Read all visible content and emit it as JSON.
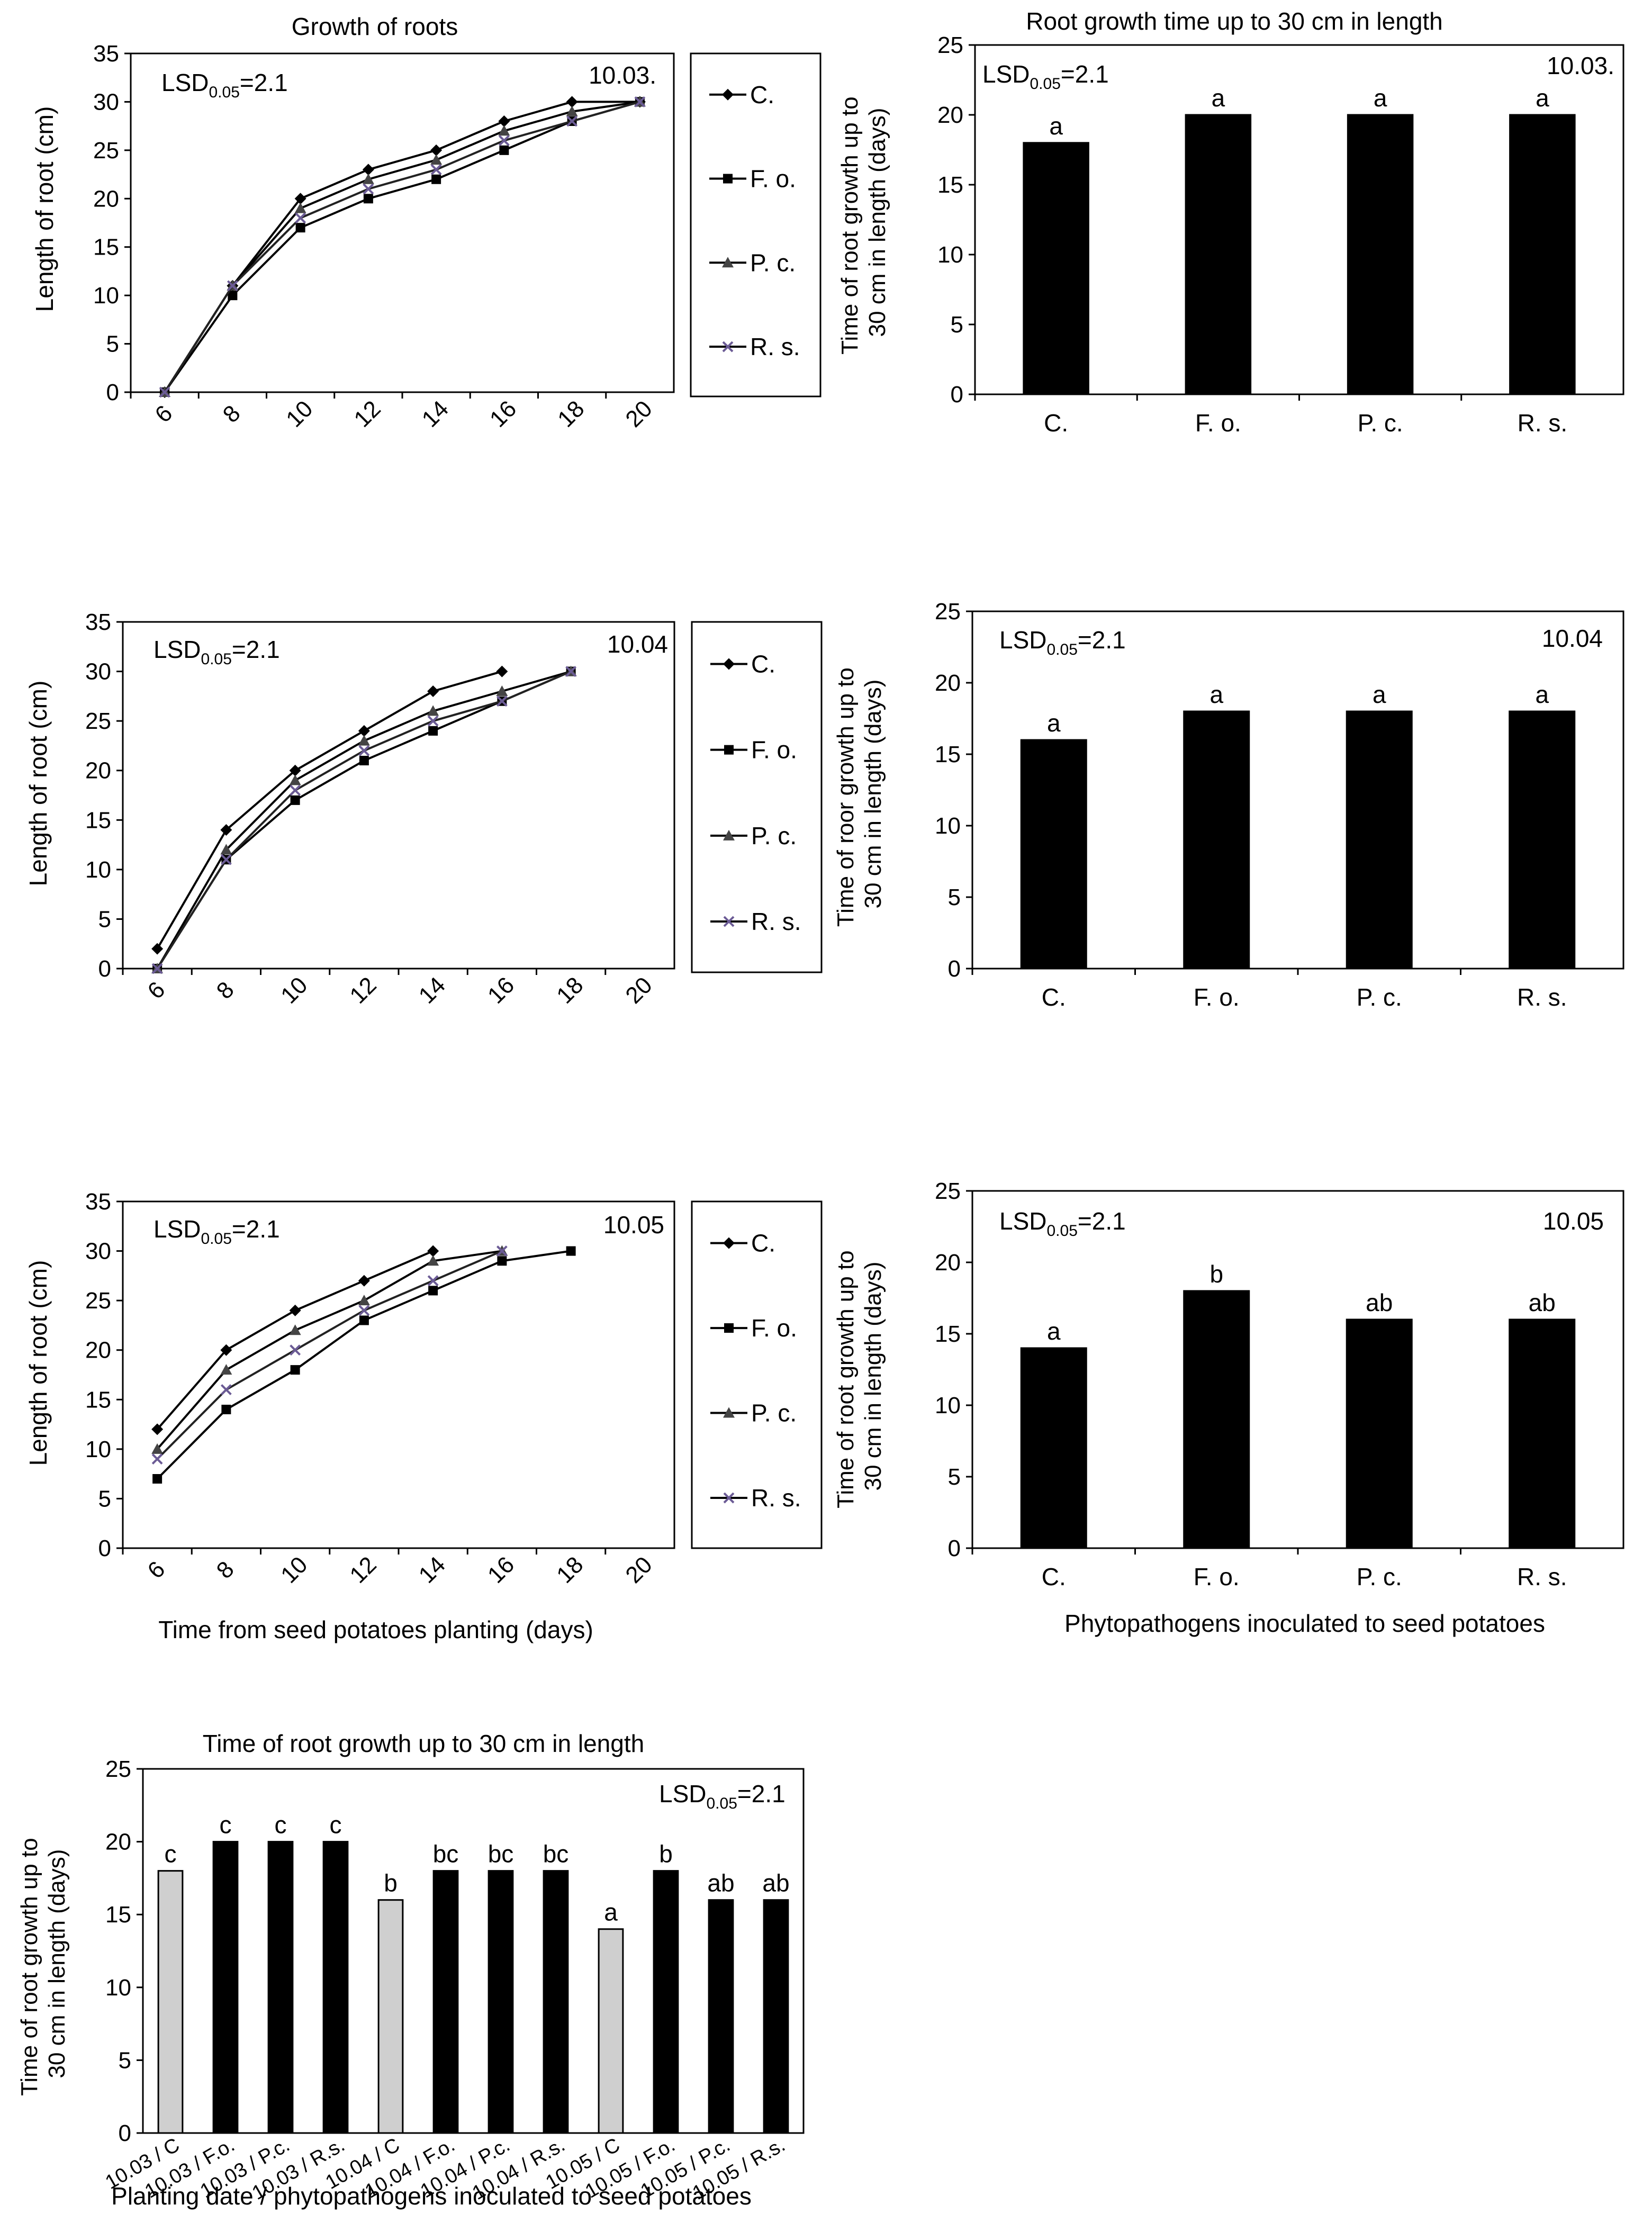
{
  "figure": {
    "top_title": "Growth of roots",
    "top_bar_title": "Root growth time up to 30 cm in length",
    "xlabel_line": "Time from seed potatoes planting  (days)",
    "xlabel_bar": "Phytopathogens  inoculated  to seed potatoes",
    "lsd": {
      "prefix": "LSD",
      "sub": "0.05",
      "suffix": "=2.1"
    },
    "colors": {
      "series": "#000000",
      "cross": "#6b5b95",
      "bar": "#000000",
      "control_bar": "#cfcfcf"
    }
  },
  "chart_data": [
    {
      "id": "line-1003",
      "type": "line",
      "title": "Growth of roots",
      "annotation": "10.03.",
      "xlabel": "",
      "ylabel": "Length of root (cm)",
      "categories": [
        6,
        8,
        10,
        12,
        14,
        16,
        18,
        20
      ],
      "ylim": [
        0,
        35
      ],
      "yticks": [
        0,
        5,
        10,
        15,
        20,
        25,
        30,
        35
      ],
      "legend_position": "right",
      "series": [
        {
          "name": "C.",
          "marker": "diamond",
          "values": [
            0,
            11,
            20,
            23,
            25,
            28,
            30,
            30
          ]
        },
        {
          "name": "F. o.",
          "marker": "square",
          "values": [
            0,
            10,
            17,
            20,
            22,
            25,
            28,
            30
          ]
        },
        {
          "name": "P. c.",
          "marker": "triangle",
          "values": [
            0,
            11,
            19,
            22,
            24,
            27,
            29,
            30
          ]
        },
        {
          "name": "R. s.",
          "marker": "cross",
          "values": [
            0,
            11,
            18,
            21,
            23,
            26,
            28,
            30
          ]
        }
      ]
    },
    {
      "id": "bar-1003",
      "type": "bar",
      "title": "Root growth time up to 30 cm in length",
      "annotation": "10.03.",
      "ylabel": [
        "Time of root growth up to",
        "30 cm in length (days)"
      ],
      "categories": [
        "C.",
        "F. o.",
        "P. c.",
        "R. s."
      ],
      "values": [
        18,
        20,
        20,
        20
      ],
      "labels": [
        "a",
        "a",
        "a",
        "a"
      ],
      "ylim": [
        0,
        25
      ],
      "yticks": [
        0,
        5,
        10,
        15,
        20,
        25
      ]
    },
    {
      "id": "line-1004",
      "type": "line",
      "title": "",
      "annotation": "10.04",
      "xlabel": "",
      "ylabel": "Length of root (cm)",
      "categories": [
        6,
        8,
        10,
        12,
        14,
        16,
        18,
        20
      ],
      "ylim": [
        0,
        35
      ],
      "yticks": [
        0,
        5,
        10,
        15,
        20,
        25,
        30,
        35
      ],
      "legend_position": "right",
      "series": [
        {
          "name": "C.",
          "marker": "diamond",
          "values": [
            2,
            14,
            20,
            24,
            28,
            30,
            null,
            null
          ]
        },
        {
          "name": "F. o.",
          "marker": "square",
          "values": [
            0,
            11,
            17,
            21,
            24,
            27,
            30,
            null
          ]
        },
        {
          "name": "P. c.",
          "marker": "triangle",
          "values": [
            0,
            12,
            19,
            23,
            26,
            28,
            30,
            null
          ]
        },
        {
          "name": "R. s.",
          "marker": "cross",
          "values": [
            0,
            11,
            18,
            22,
            25,
            27,
            30,
            null
          ]
        }
      ]
    },
    {
      "id": "bar-1004",
      "type": "bar",
      "title": "",
      "annotation": "10.04",
      "ylabel": [
        "Time of roor growth up to",
        "30 cm in length (days)"
      ],
      "categories": [
        "C.",
        "F. o.",
        "P. c.",
        "R. s."
      ],
      "values": [
        16,
        18,
        18,
        18
      ],
      "labels": [
        "a",
        "a",
        "a",
        "a"
      ],
      "ylim": [
        0,
        25
      ],
      "yticks": [
        0,
        5,
        10,
        15,
        20,
        25
      ]
    },
    {
      "id": "line-1005",
      "type": "line",
      "title": "",
      "annotation": "10.05",
      "xlabel": "Time from seed potatoes planting  (days)",
      "ylabel": "Length of root (cm)",
      "categories": [
        6,
        8,
        10,
        12,
        14,
        16,
        18,
        20
      ],
      "ylim": [
        0,
        35
      ],
      "yticks": [
        0,
        5,
        10,
        15,
        20,
        25,
        30,
        35
      ],
      "legend_position": "right",
      "series": [
        {
          "name": "C.",
          "marker": "diamond",
          "values": [
            12,
            20,
            24,
            27,
            30,
            null,
            null,
            null
          ]
        },
        {
          "name": "F. o.",
          "marker": "square",
          "values": [
            7,
            14,
            18,
            23,
            26,
            29,
            30,
            null
          ]
        },
        {
          "name": "P. c.",
          "marker": "triangle",
          "values": [
            10,
            18,
            22,
            25,
            29,
            30,
            null,
            null
          ]
        },
        {
          "name": "R. s.",
          "marker": "cross",
          "values": [
            9,
            16,
            20,
            24,
            27,
            30,
            null,
            null
          ]
        }
      ]
    },
    {
      "id": "bar-1005",
      "type": "bar",
      "title": "",
      "annotation": "10.05",
      "ylabel": [
        "Time of root growth up to",
        "30 cm in length  (days)"
      ],
      "xlabel": "Phytopathogens  inoculated  to seed potatoes",
      "categories": [
        "C.",
        "F. o.",
        "P. c.",
        "R. s."
      ],
      "values": [
        14,
        18,
        16,
        16
      ],
      "labels": [
        "a",
        "b",
        "ab",
        "ab"
      ],
      "ylim": [
        0,
        25
      ],
      "yticks": [
        0,
        5,
        10,
        15,
        20,
        25
      ]
    },
    {
      "id": "bar-all",
      "type": "bar",
      "title": "Time of root growth up to 30 cm in length",
      "ylabel": [
        "Time of root growth up to",
        "30 cm in length (days)"
      ],
      "xlabel": "Planting date / phytopathogens inoculated to seed potatoes",
      "categories": [
        "10.03 / C",
        "10.03 / F.o.",
        "10.03 / P.c.",
        "10.03 / R.s.",
        "10.04 / C",
        "10.04 / F.o.",
        "10.04 / P.c.",
        "10.04 / R.s.",
        "10.05 / C",
        "10.05 / F.o.",
        "10.05 / P.c.",
        "10.05 / R.s."
      ],
      "values": [
        18,
        20,
        20,
        20,
        16,
        18,
        18,
        18,
        14,
        18,
        16,
        16
      ],
      "labels": [
        "c",
        "c",
        "c",
        "c",
        "b",
        "bc",
        "bc",
        "bc",
        "a",
        "b",
        "ab",
        "ab"
      ],
      "control": [
        true,
        false,
        false,
        false,
        true,
        false,
        false,
        false,
        true,
        false,
        false,
        false
      ],
      "ylim": [
        0,
        25
      ],
      "yticks": [
        0,
        5,
        10,
        15,
        20,
        25
      ]
    }
  ]
}
